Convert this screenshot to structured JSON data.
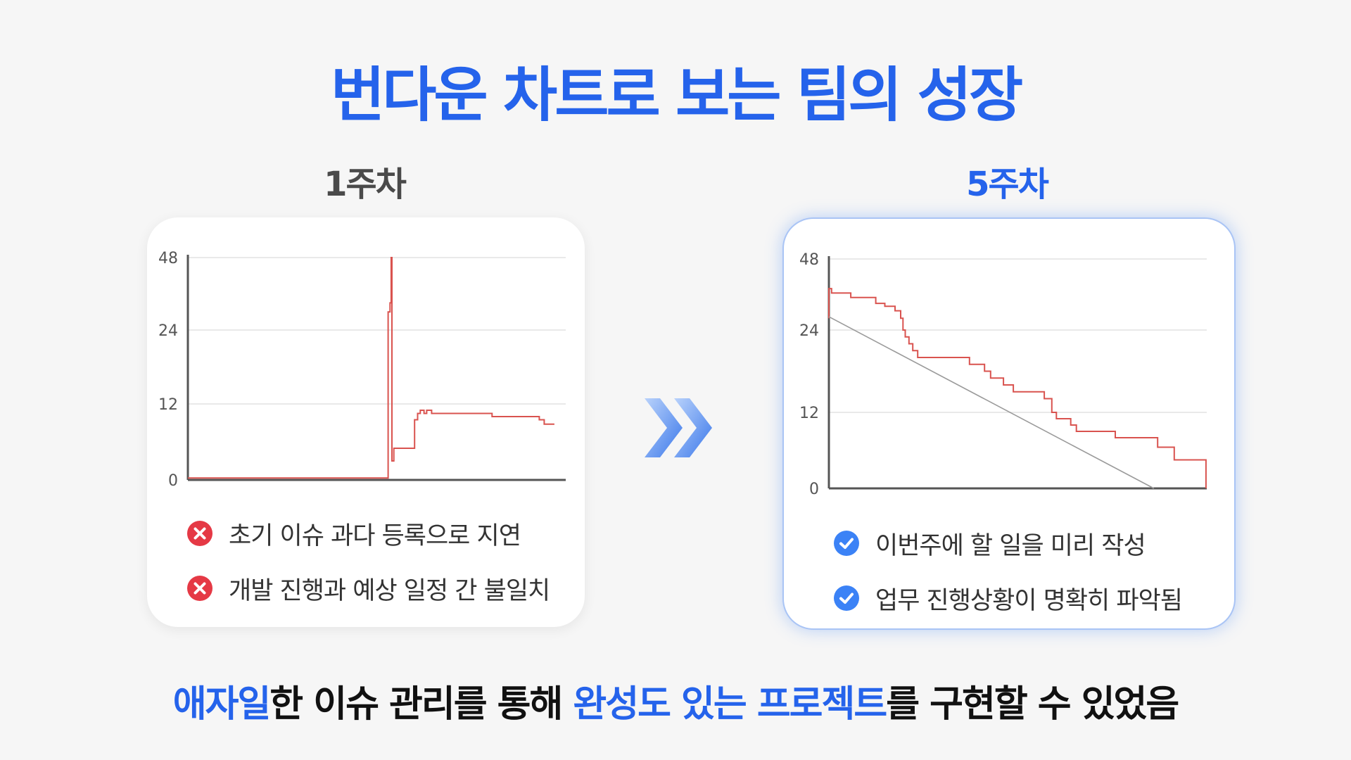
{
  "title": "번다운 차트로 보는 팀의 성장",
  "week1": {
    "label": "1주차",
    "issues": [
      "초기 이슈 과다 등록으로 지연",
      "개발 진행과 예상 일정 간 불일치"
    ]
  },
  "week5": {
    "label": "5주차",
    "achievements": [
      "이번주에 할 일을 미리 작성",
      "업무 진행상황이 명확히 파악됨"
    ]
  },
  "footer": {
    "p1": "애자일",
    "p2": "한 이슈 관리를 통해 ",
    "p3": "완성도 있는 프로젝트",
    "p4": "를 구현할 수 있었음"
  },
  "colors": {
    "accent": "#2563eb",
    "actual_line": "#d9534f",
    "ideal_line": "#9a9a9a",
    "error": "#e53945",
    "check": "#3b82f6"
  },
  "icons": {
    "issue": "x-circle-icon",
    "done": "check-circle-icon",
    "transition": "double-chevron-right-icon"
  },
  "chart_data": [
    {
      "type": "line",
      "title": "1주차",
      "y_ticks": [
        "0",
        "12",
        "24",
        "48"
      ],
      "series": [
        {
          "name": "",
          "points": [
            [
              0,
              0.3
            ],
            [
              0.53,
              0.3
            ],
            [
              0.53,
              30
            ],
            [
              0.535,
              30
            ],
            [
              0.535,
              33
            ],
            [
              0.538,
              33
            ],
            [
              0.538,
              48
            ],
            [
              0.54,
              48
            ],
            [
              0.54,
              3
            ],
            [
              0.545,
              3
            ],
            [
              0.545,
              5
            ],
            [
              0.6,
              5
            ],
            [
              0.6,
              9.5
            ],
            [
              0.608,
              9.5
            ],
            [
              0.608,
              10.5
            ],
            [
              0.615,
              10.5
            ],
            [
              0.615,
              11
            ],
            [
              0.625,
              11
            ],
            [
              0.625,
              10.5
            ],
            [
              0.632,
              10.5
            ],
            [
              0.632,
              11
            ],
            [
              0.645,
              11
            ],
            [
              0.645,
              10.5
            ],
            [
              0.805,
              10.5
            ],
            [
              0.805,
              10
            ],
            [
              0.93,
              10
            ],
            [
              0.93,
              9.5
            ],
            [
              0.943,
              9.5
            ],
            [
              0.943,
              8.8
            ],
            [
              0.97,
              8.8
            ]
          ]
        }
      ]
    },
    {
      "type": "line",
      "title": "5주차",
      "y_ticks": [
        "0",
        "12",
        "24",
        "48"
      ],
      "series": [
        {
          "name": "",
          "points": [
            [
              0,
              28
            ],
            [
              0,
              38
            ],
            [
              0.007,
              38
            ],
            [
              0.007,
              36.5
            ],
            [
              0.058,
              36.5
            ],
            [
              0.058,
              35
            ],
            [
              0.124,
              35
            ],
            [
              0.124,
              33
            ],
            [
              0.148,
              33
            ],
            [
              0.148,
              32
            ],
            [
              0.175,
              32
            ],
            [
              0.175,
              30.5
            ],
            [
              0.19,
              30.5
            ],
            [
              0.19,
              28
            ],
            [
              0.196,
              28
            ],
            [
              0.196,
              24
            ],
            [
              0.202,
              24
            ],
            [
              0.202,
              23
            ],
            [
              0.212,
              23
            ],
            [
              0.212,
              22
            ],
            [
              0.222,
              22
            ],
            [
              0.222,
              21
            ],
            [
              0.235,
              21
            ],
            [
              0.235,
              20
            ],
            [
              0.372,
              20
            ],
            [
              0.372,
              19
            ],
            [
              0.412,
              19
            ],
            [
              0.412,
              18
            ],
            [
              0.428,
              18
            ],
            [
              0.428,
              17
            ],
            [
              0.462,
              17
            ],
            [
              0.462,
              16
            ],
            [
              0.488,
              16
            ],
            [
              0.488,
              15
            ],
            [
              0.57,
              15
            ],
            [
              0.57,
              14
            ],
            [
              0.59,
              14
            ],
            [
              0.59,
              12
            ],
            [
              0.602,
              12
            ],
            [
              0.602,
              11
            ],
            [
              0.64,
              11
            ],
            [
              0.64,
              10
            ],
            [
              0.655,
              10
            ],
            [
              0.655,
              9
            ],
            [
              0.758,
              9
            ],
            [
              0.758,
              8
            ],
            [
              0.87,
              8
            ],
            [
              0.87,
              6.5
            ],
            [
              0.914,
              6.5
            ],
            [
              0.914,
              4.5
            ],
            [
              0.998,
              4.5
            ],
            [
              0.998,
              0
            ]
          ]
        },
        {
          "name": "",
          "points": [
            [
              0,
              28.5
            ],
            [
              0.86,
              0
            ]
          ]
        }
      ]
    }
  ]
}
